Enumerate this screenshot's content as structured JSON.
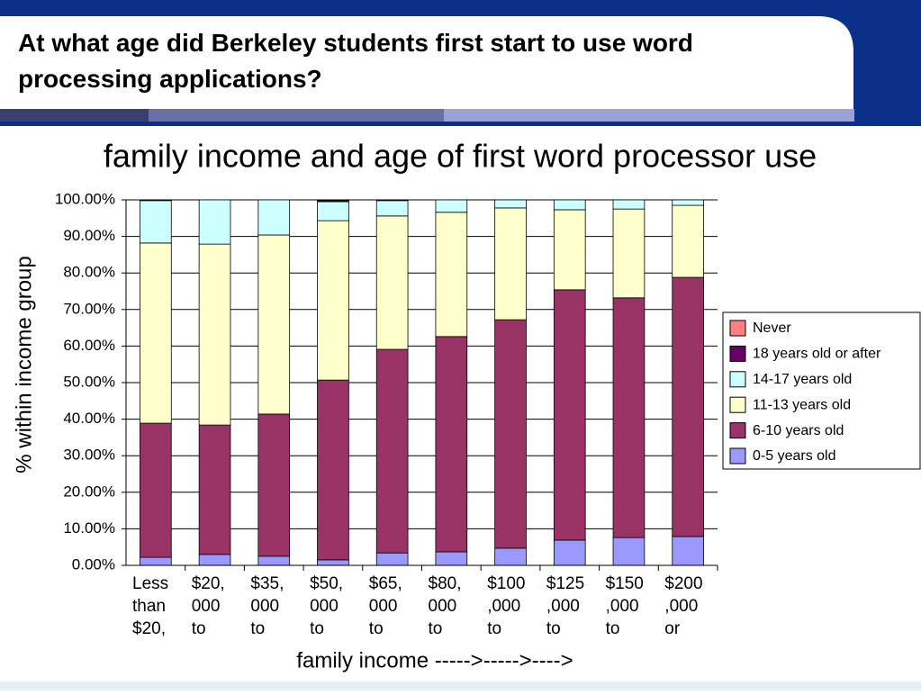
{
  "slide_title": "At what age did Berkeley students first start to use word processing applications?",
  "chart_data": {
    "type": "stacked-bar",
    "title": "family income and age of first word processor use",
    "x_label": "family income ----->----->---->",
    "y_label": "% within income group",
    "categories": [
      [
        "Less",
        "than",
        "$20,"
      ],
      [
        "$20,",
        "000",
        "to"
      ],
      [
        "$35,",
        "000",
        "to"
      ],
      [
        "$50,",
        "000",
        "to"
      ],
      [
        "$65,",
        "000",
        "to"
      ],
      [
        "$80,",
        "000",
        "to"
      ],
      [
        "$100",
        ",000",
        "to"
      ],
      [
        "$125",
        ",000",
        "to"
      ],
      [
        "$150",
        ",000",
        "to"
      ],
      [
        "$200",
        ",000",
        "or"
      ]
    ],
    "series": [
      {
        "name": "Never",
        "color": "#ff8080",
        "values": [
          0,
          0,
          0,
          0.2,
          0,
          0,
          0,
          0,
          0,
          0
        ]
      },
      {
        "name": "18 years old or after",
        "color": "#660066",
        "values": [
          0.2,
          0,
          0,
          0.3,
          0.2,
          0,
          0,
          0,
          0,
          0
        ]
      },
      {
        "name": "14-17 years old",
        "color": "#ccffff",
        "values": [
          11.6,
          12.1,
          9.6,
          5.2,
          4.2,
          3.4,
          2.2,
          2.7,
          2.5,
          1.5
        ]
      },
      {
        "name": "11-13 years old",
        "color": "#ffffcc",
        "values": [
          49.3,
          49.5,
          49,
          43.6,
          36.5,
          34,
          30.6,
          21.9,
          24.3,
          19.7
        ]
      },
      {
        "name": "6-10 years old",
        "color": "#993366",
        "values": [
          36.7,
          35.4,
          38.9,
          49.2,
          55.7,
          58.9,
          62.5,
          68.5,
          65.6,
          70.9
        ]
      },
      {
        "name": "0-5 years old",
        "color": "#9999ff",
        "values": [
          2.2,
          3,
          2.5,
          1.5,
          3.4,
          3.7,
          4.7,
          6.9,
          7.6,
          7.9
        ]
      }
    ],
    "ylim": [
      0,
      100
    ],
    "yticks": [
      {
        "value": 0,
        "label": "0.00%"
      },
      {
        "value": 10,
        "label": "10.00%"
      },
      {
        "value": 20,
        "label": "20.00%"
      },
      {
        "value": 30,
        "label": "30.00%"
      },
      {
        "value": 40,
        "label": "40.00%"
      },
      {
        "value": 50,
        "label": "50.00%"
      },
      {
        "value": 60,
        "label": "60.00%"
      },
      {
        "value": 70,
        "label": "70.00%"
      },
      {
        "value": 80,
        "label": "80.00%"
      },
      {
        "value": 90,
        "label": "90.00%"
      },
      {
        "value": 100,
        "label": "100.00%"
      }
    ],
    "grid": true,
    "legend": "right"
  }
}
